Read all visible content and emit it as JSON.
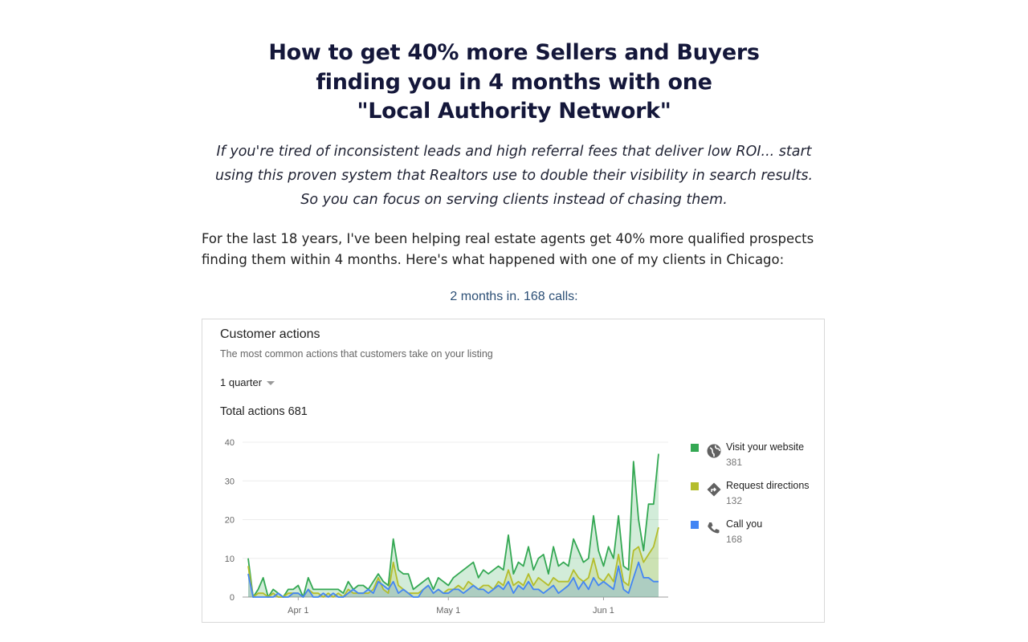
{
  "headline": {
    "line1": "How to get 40% more Sellers and Buyers",
    "line2": "finding you in 4 months with one",
    "line3": "\"Local Authority Network\""
  },
  "subhead": "If you're tired of inconsistent leads and high referral fees that deliver low ROI... start using this proven system that Realtors use to double their visibility in search results. So you can focus on serving clients instead of chasing them.",
  "body_text": "For the last 18 years, I've been helping real estate agents get 40% more qualified prospects finding them within 4 months. Here's what happened with one of my clients in Chicago:",
  "caption": "2 months in. 168 calls:",
  "card": {
    "title": "Customer actions",
    "subtitle": "The most common actions that customers take on your listing",
    "period": "1 quarter",
    "total": "Total actions 681"
  },
  "colors": {
    "website": "#34a853",
    "directions": "#b4bd2c",
    "calls": "#4285f4",
    "headline": "#14173a",
    "caption": "#2c4f76"
  },
  "chart_data": {
    "type": "area",
    "ylim": [
      0,
      40
    ],
    "yticks": [
      "0",
      "10",
      "20",
      "30",
      "40"
    ],
    "xticks": [
      {
        "label": "Apr 1",
        "day": 10
      },
      {
        "label": "May 1",
        "day": 40
      },
      {
        "label": "Jun 1",
        "day": 71
      }
    ],
    "grid": true,
    "legend_position": "right",
    "series": [
      {
        "name": "Visit your website",
        "total": "381",
        "icon": "globe-icon",
        "color": "#34a853",
        "values": [
          10,
          0,
          2,
          5,
          0,
          2,
          1,
          0,
          2,
          2,
          3,
          0,
          5,
          2,
          2,
          2,
          2,
          2,
          2,
          1,
          4,
          2,
          3,
          3,
          2,
          4,
          6,
          4,
          3,
          15,
          7,
          6,
          6,
          2,
          3,
          4,
          5,
          2,
          5,
          4,
          3,
          5,
          6,
          7,
          8,
          9,
          5,
          7,
          6,
          7,
          8,
          7,
          16,
          6,
          9,
          8,
          13,
          7,
          10,
          11,
          6,
          13,
          8,
          9,
          8,
          15,
          12,
          9,
          10,
          21,
          12,
          8,
          13,
          10,
          21,
          8,
          7,
          35,
          20,
          12,
          24,
          24,
          37
        ]
      },
      {
        "name": "Request directions",
        "total": "132",
        "icon": "directions-icon",
        "color": "#b4bd2c",
        "values": [
          8,
          0,
          1,
          1,
          0,
          1,
          0,
          0,
          1,
          1,
          1,
          0,
          2,
          1,
          1,
          0,
          1,
          0,
          1,
          0,
          2,
          1,
          1,
          1,
          1,
          2,
          5,
          2,
          1,
          9,
          3,
          2,
          1,
          1,
          1,
          2,
          3,
          1,
          2,
          1,
          2,
          2,
          3,
          2,
          4,
          3,
          2,
          3,
          3,
          2,
          4,
          3,
          7,
          3,
          4,
          3,
          6,
          3,
          5,
          4,
          3,
          5,
          4,
          4,
          4,
          7,
          5,
          4,
          5,
          10,
          5,
          4,
          6,
          4,
          11,
          4,
          3,
          12,
          13,
          9,
          11,
          13,
          18
        ]
      },
      {
        "name": "Call you",
        "total": "168",
        "icon": "phone-icon",
        "color": "#4285f4",
        "values": [
          6,
          0,
          0,
          0,
          0,
          0,
          1,
          0,
          0,
          1,
          1,
          0,
          2,
          0,
          0,
          1,
          0,
          1,
          0,
          0,
          1,
          2,
          1,
          1,
          2,
          1,
          4,
          3,
          2,
          4,
          1,
          2,
          1,
          0,
          0,
          2,
          3,
          1,
          2,
          1,
          1,
          2,
          2,
          1,
          2,
          3,
          2,
          2,
          1,
          2,
          3,
          2,
          4,
          1,
          3,
          2,
          4,
          2,
          2,
          1,
          2,
          3,
          1,
          2,
          3,
          5,
          2,
          4,
          2,
          5,
          3,
          4,
          3,
          2,
          8,
          2,
          1,
          5,
          9,
          5,
          5,
          4,
          4
        ]
      }
    ]
  }
}
